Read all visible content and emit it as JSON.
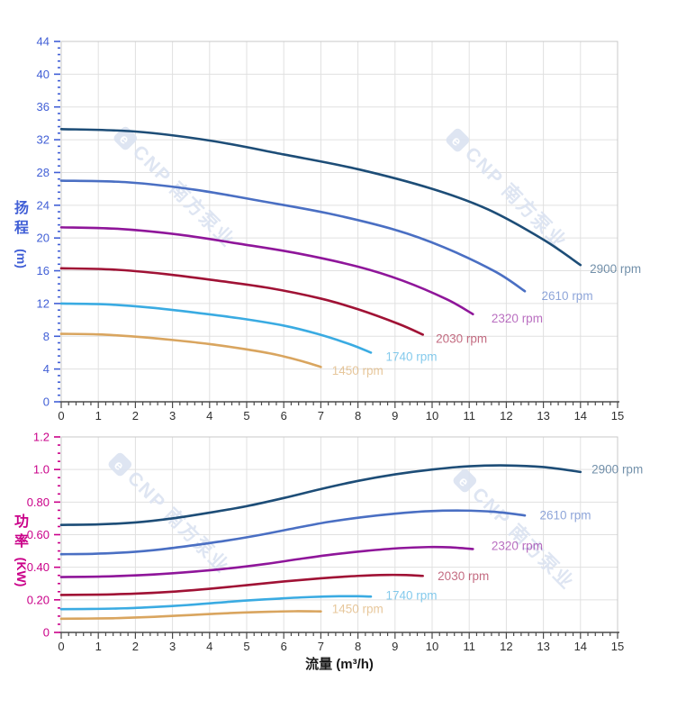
{
  "x_axis_title": "流量 (m³/h)",
  "x_tick_labels": [
    "0",
    "1",
    "2",
    "3",
    "4",
    "5",
    "6",
    "7",
    "8",
    "9",
    "10",
    "11",
    "12",
    "13",
    "14",
    "15"
  ],
  "watermark": {
    "logo_glyph": "e",
    "text": "CNP 南方泵业",
    "color": "#dbe3f1"
  },
  "chart_data": [
    {
      "id": "head",
      "type": "line",
      "ylabel": "扬程 (m)",
      "ylabel_stack": [
        "扬",
        "程"
      ],
      "ylabel_unit": "(m)",
      "xlabel": "流量 (m³/h)",
      "xlim": [
        0,
        15
      ],
      "ylim": [
        0,
        44
      ],
      "x_major_step": 1,
      "x_minor_step": 0.2,
      "y_major_step": 4,
      "y_minor_step": 0.8,
      "y_tick_labels": [
        "0",
        "4",
        "8",
        "12",
        "16",
        "20",
        "24",
        "28",
        "32",
        "36",
        "40",
        "44"
      ],
      "axis_color": "#415fd6",
      "grid": true,
      "legend_position": "inline-curve-end",
      "series": [
        {
          "name": "2900 rpm",
          "color": "#1d4d77",
          "label_at": [
            14.25,
            16.2
          ],
          "points": [
            [
              0,
              33.3
            ],
            [
              2,
              33.0
            ],
            [
              4,
              31.9
            ],
            [
              6,
              30.2
            ],
            [
              8,
              28.4
            ],
            [
              10,
              26.0
            ],
            [
              11.5,
              23.5
            ],
            [
              13,
              19.8
            ],
            [
              14,
              16.7
            ]
          ]
        },
        {
          "name": "2610 rpm",
          "color": "#4a6fc3",
          "label_at": [
            12.95,
            12.9
          ],
          "points": [
            [
              0,
              27.0
            ],
            [
              1.8,
              26.8
            ],
            [
              3.6,
              25.9
            ],
            [
              5.4,
              24.5
            ],
            [
              7.2,
              23.0
            ],
            [
              9,
              21.0
            ],
            [
              10.3,
              18.9
            ],
            [
              11.7,
              15.9
            ],
            [
              12.5,
              13.5
            ]
          ]
        },
        {
          "name": "2320 rpm",
          "color": "#8f169a",
          "label_at": [
            11.6,
            10.2
          ],
          "points": [
            [
              0,
              21.3
            ],
            [
              1.6,
              21.1
            ],
            [
              3.2,
              20.4
            ],
            [
              4.8,
              19.3
            ],
            [
              6.4,
              18.1
            ],
            [
              8,
              16.5
            ],
            [
              9.2,
              14.8
            ],
            [
              10.4,
              12.5
            ],
            [
              11.1,
              10.7
            ]
          ]
        },
        {
          "name": "2030 rpm",
          "color": "#a01235",
          "label_at": [
            10.1,
            7.7
          ],
          "points": [
            [
              0,
              16.3
            ],
            [
              1.4,
              16.15
            ],
            [
              2.8,
              15.6
            ],
            [
              4.2,
              14.8
            ],
            [
              5.6,
              13.9
            ],
            [
              7,
              12.6
            ],
            [
              8,
              11.3
            ],
            [
              9.1,
              9.5
            ],
            [
              9.75,
              8.2
            ]
          ]
        },
        {
          "name": "1740 rpm",
          "color": "#3aabe2",
          "label_at": [
            8.75,
            5.5
          ],
          "points": [
            [
              0,
              12.0
            ],
            [
              1.2,
              11.9
            ],
            [
              2.4,
              11.5
            ],
            [
              3.6,
              10.9
            ],
            [
              4.8,
              10.2
            ],
            [
              6,
              9.3
            ],
            [
              6.9,
              8.3
            ],
            [
              7.8,
              7.0
            ],
            [
              8.35,
              6.0
            ]
          ]
        },
        {
          "name": "1450 rpm",
          "color": "#d9a55f",
          "label_at": [
            7.3,
            3.8
          ],
          "points": [
            [
              0,
              8.3
            ],
            [
              1,
              8.23
            ],
            [
              2,
              7.95
            ],
            [
              3,
              7.55
            ],
            [
              4,
              7.05
            ],
            [
              5,
              6.4
            ],
            [
              5.8,
              5.75
            ],
            [
              6.5,
              4.95
            ],
            [
              7,
              4.25
            ]
          ]
        }
      ]
    },
    {
      "id": "power",
      "type": "line",
      "ylabel": "功率 (KW)",
      "ylabel_stack": [
        "功",
        "率"
      ],
      "ylabel_unit": "(KW)",
      "xlabel": "流量 (m³/h)",
      "xlim": [
        0,
        15
      ],
      "ylim": [
        0,
        1.2
      ],
      "x_major_step": 1,
      "x_minor_step": 0.2,
      "y_major_step": 0.2,
      "y_minor_step": 0.05,
      "y_tick_labels": [
        "0",
        "0.20",
        "0.40",
        "0.60",
        "0.80",
        "1.0",
        "1.2"
      ],
      "axis_color": "#ca0089",
      "grid": true,
      "legend_position": "inline-curve-end",
      "series": [
        {
          "name": "2900 rpm",
          "color": "#1d4d77",
          "label_at": [
            14.3,
            1.0
          ],
          "points": [
            [
              0,
              0.66
            ],
            [
              1,
              0.663
            ],
            [
              2,
              0.675
            ],
            [
              3,
              0.7
            ],
            [
              4,
              0.735
            ],
            [
              5,
              0.775
            ],
            [
              6,
              0.825
            ],
            [
              7,
              0.88
            ],
            [
              8,
              0.93
            ],
            [
              9,
              0.97
            ],
            [
              10,
              1.0
            ],
            [
              11,
              1.02
            ],
            [
              12,
              1.025
            ],
            [
              13,
              1.015
            ],
            [
              14,
              0.985
            ]
          ]
        },
        {
          "name": "2610 rpm",
          "color": "#4a6fc3",
          "label_at": [
            12.9,
            0.72
          ],
          "points": [
            [
              0,
              0.48
            ],
            [
              0.9,
              0.483
            ],
            [
              1.8,
              0.492
            ],
            [
              2.7,
              0.51
            ],
            [
              3.6,
              0.536
            ],
            [
              4.5,
              0.565
            ],
            [
              5.4,
              0.6
            ],
            [
              6.3,
              0.64
            ],
            [
              7.2,
              0.678
            ],
            [
              8.1,
              0.707
            ],
            [
              9,
              0.729
            ],
            [
              9.9,
              0.744
            ],
            [
              10.8,
              0.748
            ],
            [
              11.7,
              0.74
            ],
            [
              12.5,
              0.718
            ]
          ]
        },
        {
          "name": "2320 rpm",
          "color": "#8f169a",
          "label_at": [
            11.6,
            0.53
          ],
          "points": [
            [
              0,
              0.34
            ],
            [
              1.1,
              0.343
            ],
            [
              2.2,
              0.352
            ],
            [
              3.3,
              0.368
            ],
            [
              4.4,
              0.39
            ],
            [
              5.5,
              0.42
            ],
            [
              6.4,
              0.45
            ],
            [
              7.3,
              0.478
            ],
            [
              8.2,
              0.5
            ],
            [
              9.1,
              0.517
            ],
            [
              9.9,
              0.524
            ],
            [
              10.5,
              0.522
            ],
            [
              11.1,
              0.512
            ]
          ]
        },
        {
          "name": "2030 rpm",
          "color": "#a01235",
          "label_at": [
            10.15,
            0.345
          ],
          "points": [
            [
              0,
              0.23
            ],
            [
              1,
              0.232
            ],
            [
              2,
              0.238
            ],
            [
              3,
              0.25
            ],
            [
              4,
              0.268
            ],
            [
              5,
              0.29
            ],
            [
              6,
              0.313
            ],
            [
              7,
              0.332
            ],
            [
              8,
              0.347
            ],
            [
              8.8,
              0.353
            ],
            [
              9.3,
              0.352
            ],
            [
              9.75,
              0.347
            ]
          ]
        },
        {
          "name": "1740 rpm",
          "color": "#3aabe2",
          "label_at": [
            8.75,
            0.228
          ],
          "points": [
            [
              0,
              0.143
            ],
            [
              0.8,
              0.144
            ],
            [
              1.7,
              0.148
            ],
            [
              2.5,
              0.156
            ],
            [
              3.4,
              0.168
            ],
            [
              4.2,
              0.182
            ],
            [
              5,
              0.196
            ],
            [
              5.9,
              0.208
            ],
            [
              6.7,
              0.217
            ],
            [
              7.5,
              0.222
            ],
            [
              8,
              0.222
            ],
            [
              8.35,
              0.22
            ]
          ]
        },
        {
          "name": "1450 rpm",
          "color": "#d9a55f",
          "label_at": [
            7.3,
            0.145
          ],
          "points": [
            [
              0,
              0.084
            ],
            [
              0.7,
              0.085
            ],
            [
              1.4,
              0.087
            ],
            [
              2.1,
              0.092
            ],
            [
              2.8,
              0.099
            ],
            [
              3.5,
              0.107
            ],
            [
              4.2,
              0.115
            ],
            [
              4.9,
              0.122
            ],
            [
              5.6,
              0.127
            ],
            [
              6.3,
              0.13
            ],
            [
              7,
              0.129
            ]
          ]
        }
      ]
    }
  ]
}
